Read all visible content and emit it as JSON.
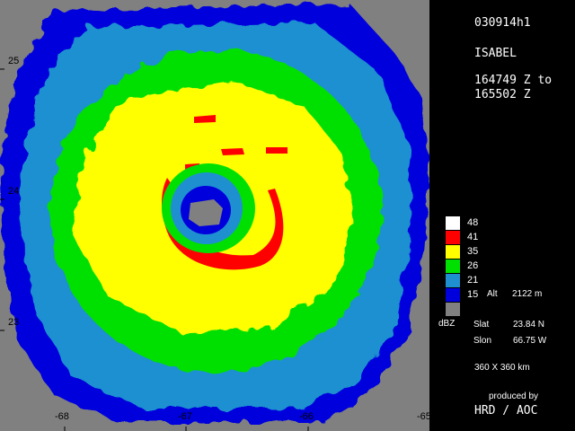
{
  "header": {
    "case_id": "030914h1",
    "storm_name": "ISABEL",
    "time_start": "164749 Z to",
    "time_end": "165502 Z"
  },
  "legend": {
    "entries": [
      {
        "value": "48",
        "color": "#ffffff"
      },
      {
        "value": "41",
        "color": "#ff0000"
      },
      {
        "value": "35",
        "color": "#ffff00"
      },
      {
        "value": "26",
        "color": "#00e000"
      },
      {
        "value": "21",
        "color": "#1e90d0"
      },
      {
        "value": "15",
        "color": "#0000dd"
      }
    ],
    "altitude_label": "Alt",
    "altitude_value": "2122 m",
    "no_data_color": "#808080",
    "units": "dBZ"
  },
  "location": {
    "slat_label": "Slat",
    "slat_value": "23.84 N",
    "slon_label": "Slon",
    "slon_value": "66.75 W"
  },
  "domain_size": "360 X 360 km",
  "credits": {
    "line1": "produced by",
    "line2": "HRD / AOC"
  },
  "axes": {
    "lat_ticks": [
      "25",
      "24",
      "23"
    ],
    "lon_ticks": [
      "-68",
      "-67",
      "-66",
      "-65"
    ]
  }
}
